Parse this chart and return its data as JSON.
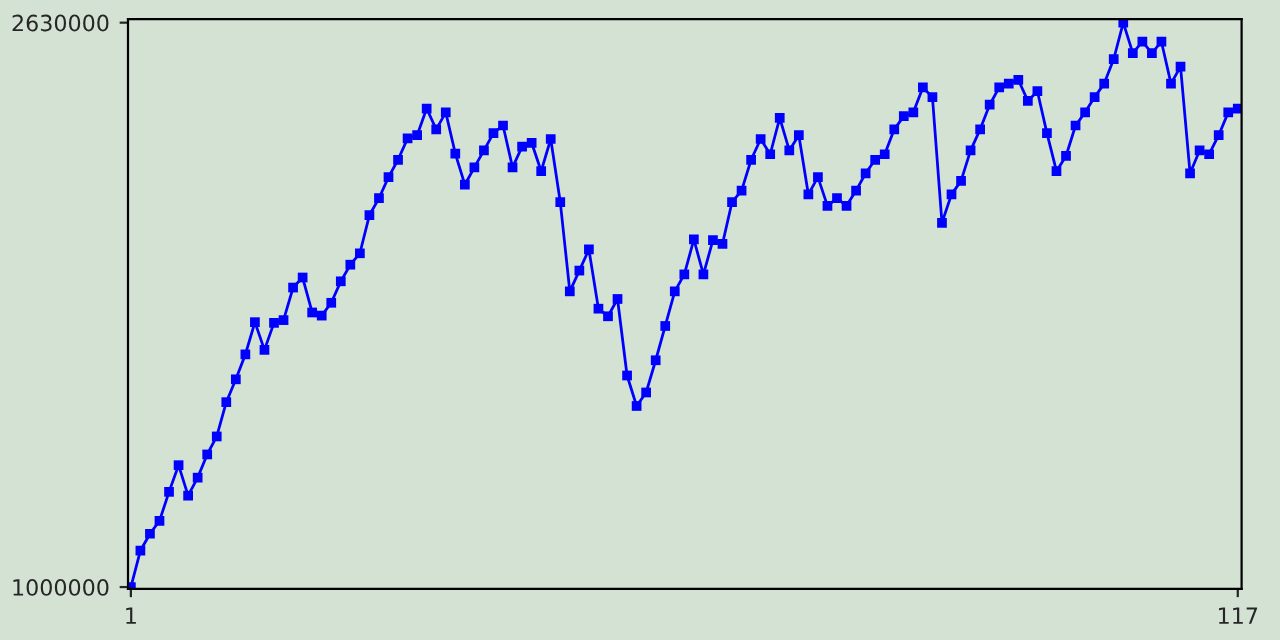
{
  "chart_data": {
    "type": "line",
    "x": [
      1,
      2,
      3,
      4,
      5,
      6,
      7,
      8,
      9,
      10,
      11,
      12,
      13,
      14,
      15,
      16,
      17,
      18,
      19,
      20,
      21,
      22,
      23,
      24,
      25,
      26,
      27,
      28,
      29,
      30,
      31,
      32,
      33,
      34,
      35,
      36,
      37,
      38,
      39,
      40,
      41,
      42,
      43,
      44,
      45,
      46,
      47,
      48,
      49,
      50,
      51,
      52,
      53,
      54,
      55,
      56,
      57,
      58,
      59,
      60,
      61,
      62,
      63,
      64,
      65,
      66,
      67,
      68,
      69,
      70,
      71,
      72,
      73,
      74,
      75,
      76,
      77,
      78,
      79,
      80,
      81,
      82,
      83,
      84,
      85,
      86,
      87,
      88,
      89,
      90,
      91,
      92,
      93,
      94,
      95,
      96,
      97,
      98,
      99,
      100,
      101,
      102,
      103,
      104,
      105,
      106,
      107,
      108,
      109,
      110,
      111,
      112,
      113,
      114,
      115,
      116,
      117
    ],
    "series": [
      {
        "color": "#0000ff",
        "values": [
          1000000,
          1105000,
          1154000,
          1191000,
          1275000,
          1352000,
          1264000,
          1316000,
          1383000,
          1435000,
          1534000,
          1600000,
          1672000,
          1765000,
          1685000,
          1763000,
          1771000,
          1865000,
          1894000,
          1793000,
          1784000,
          1821000,
          1883000,
          1931000,
          1964000,
          2074000,
          2123000,
          2184000,
          2234000,
          2296000,
          2305000,
          2382000,
          2322000,
          2371000,
          2252000,
          2162000,
          2212000,
          2261000,
          2311000,
          2333000,
          2212000,
          2272000,
          2283000,
          2201000,
          2294000,
          2112000,
          1854000,
          1914000,
          1975000,
          1804000,
          1782000,
          1832000,
          1611000,
          1523000,
          1562000,
          1655000,
          1754000,
          1854000,
          1903000,
          2004000,
          1903000,
          2002000,
          1991000,
          2112000,
          2145000,
          2234000,
          2294000,
          2250000,
          2355000,
          2261000,
          2305000,
          2134000,
          2184000,
          2101000,
          2123000,
          2101000,
          2145000,
          2195000,
          2234000,
          2250000,
          2322000,
          2360000,
          2371000,
          2443000,
          2415000,
          2052000,
          2134000,
          2173000,
          2261000,
          2322000,
          2393000,
          2443000,
          2454000,
          2465000,
          2404000,
          2432000,
          2311000,
          2201000,
          2245000,
          2333000,
          2371000,
          2415000,
          2454000,
          2525000,
          2630000,
          2542000,
          2575000,
          2542000,
          2575000,
          2454000,
          2503000,
          2195000,
          2261000,
          2250000,
          2305000,
          2371000,
          2382000
        ]
      }
    ],
    "xlim": [
      0.7,
      117.4
    ],
    "ylim": [
      995000,
      2640000
    ],
    "xticks": [
      1,
      117
    ],
    "yticks": [
      1000000,
      2630000
    ],
    "marker": "square",
    "line_style": "solid",
    "grid": false
  }
}
